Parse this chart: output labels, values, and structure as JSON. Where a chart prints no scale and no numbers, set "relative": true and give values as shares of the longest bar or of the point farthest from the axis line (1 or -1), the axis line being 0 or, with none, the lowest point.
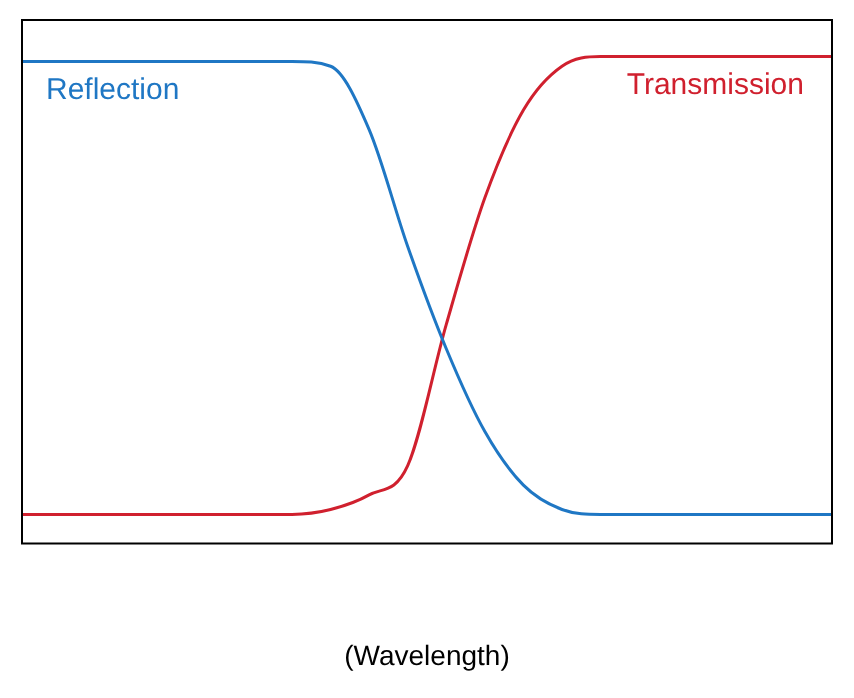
{
  "chart_data": {
    "type": "line",
    "relative": true,
    "xlabel": "(Wavelength)",
    "categories": [
      null,
      null,
      null,
      null,
      null,
      null,
      null,
      null,
      null,
      null,
      null,
      null,
      null,
      null,
      null,
      null,
      null,
      null,
      null,
      null,
      null,
      null
    ],
    "series": [
      {
        "name": "Reflection",
        "color": "#1f77c4",
        "values": [
          0.99,
          0.99,
          0.99,
          0.99,
          0.99,
          0.99,
          0.99,
          0.99,
          0.98,
          0.85,
          0.61,
          0.4,
          0.23,
          0.12,
          0.07,
          0.06,
          0.06,
          0.06,
          0.06,
          0.06,
          0.06,
          0.06
        ]
      },
      {
        "name": "Transmission",
        "color": "#d0202e",
        "values": [
          0.06,
          0.06,
          0.06,
          0.06,
          0.06,
          0.06,
          0.06,
          0.06,
          0.07,
          0.1,
          0.16,
          0.45,
          0.71,
          0.89,
          0.98,
          1,
          1,
          1,
          1,
          1,
          1,
          1
        ]
      }
    ],
    "legend": false,
    "grid": false,
    "marker": "none",
    "line_style": "solid"
  }
}
